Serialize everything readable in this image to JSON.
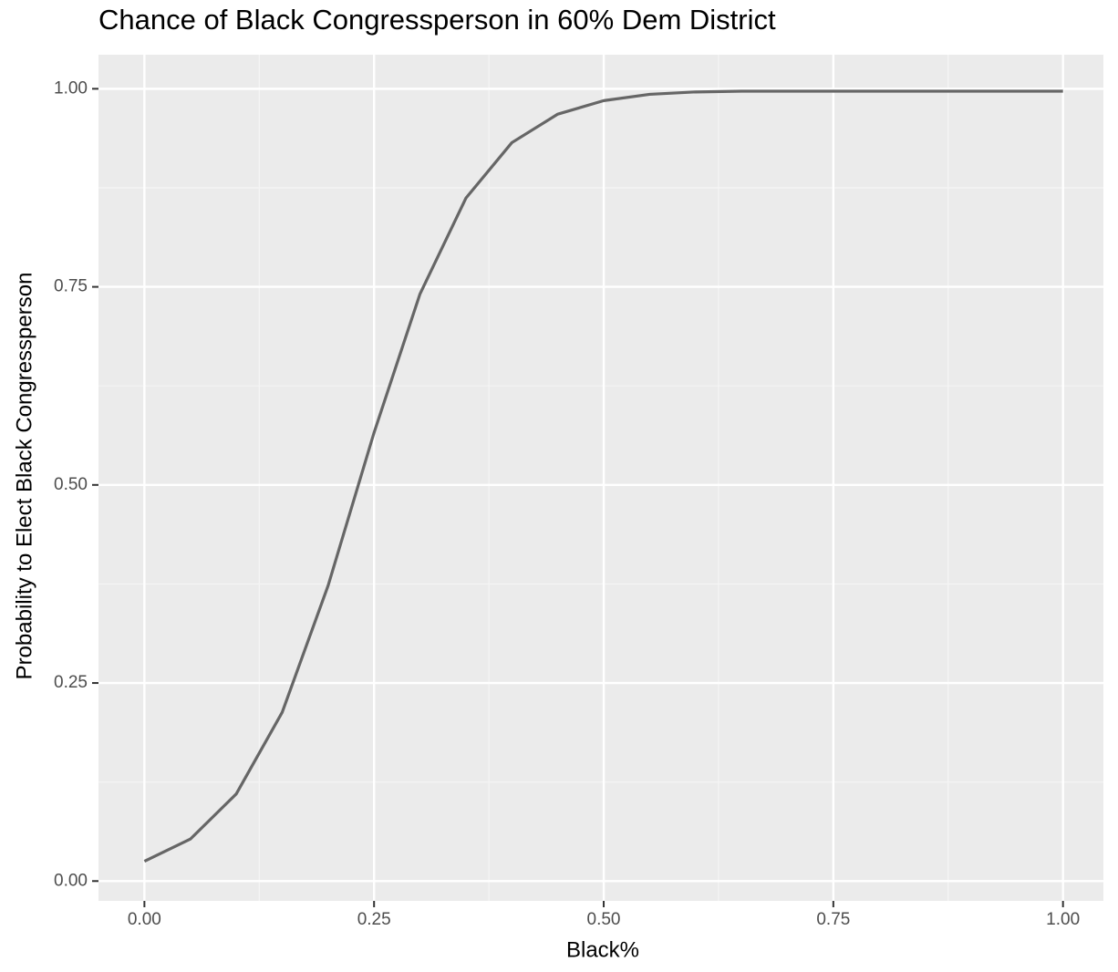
{
  "chart_data": {
    "type": "line",
    "title": "Chance of Black Congressperson in 60% Dem District",
    "x_label": "Black%",
    "y_label": "Probability to Elect Black Congressperson",
    "x": [
      0,
      0.05,
      0.1,
      0.15,
      0.2,
      0.25,
      0.3,
      0.35,
      0.4,
      0.45,
      0.5,
      0.55,
      0.6,
      0.65,
      0.7,
      0.75,
      0.8,
      0.85,
      0.9,
      0.95,
      1
    ],
    "values": [
      0.025,
      0.053,
      0.11,
      0.213,
      0.373,
      0.566,
      0.741,
      0.862,
      0.932,
      0.968,
      0.985,
      0.993,
      0.996,
      0.997,
      0.997,
      0.997,
      0.997,
      0.997,
      0.997,
      0.997,
      0.997
    ],
    "color": "#666666",
    "xlim": [
      -0.05,
      1.044
    ],
    "ylim": [
      -0.025,
      1.043
    ],
    "xticks": [
      {
        "value": 0,
        "label": "0.00"
      },
      {
        "value": 0.25,
        "label": "0.25"
      },
      {
        "value": 0.5,
        "label": "0.50"
      },
      {
        "value": 0.75,
        "label": "0.75"
      },
      {
        "value": 1,
        "label": "1.00"
      }
    ],
    "yticks": [
      {
        "value": 0,
        "label": "0.00"
      },
      {
        "value": 0.25,
        "label": "0.25"
      },
      {
        "value": 0.5,
        "label": "0.50"
      },
      {
        "value": 0.75,
        "label": "0.75"
      },
      {
        "value": 1,
        "label": "1.00"
      }
    ],
    "grid": true
  }
}
